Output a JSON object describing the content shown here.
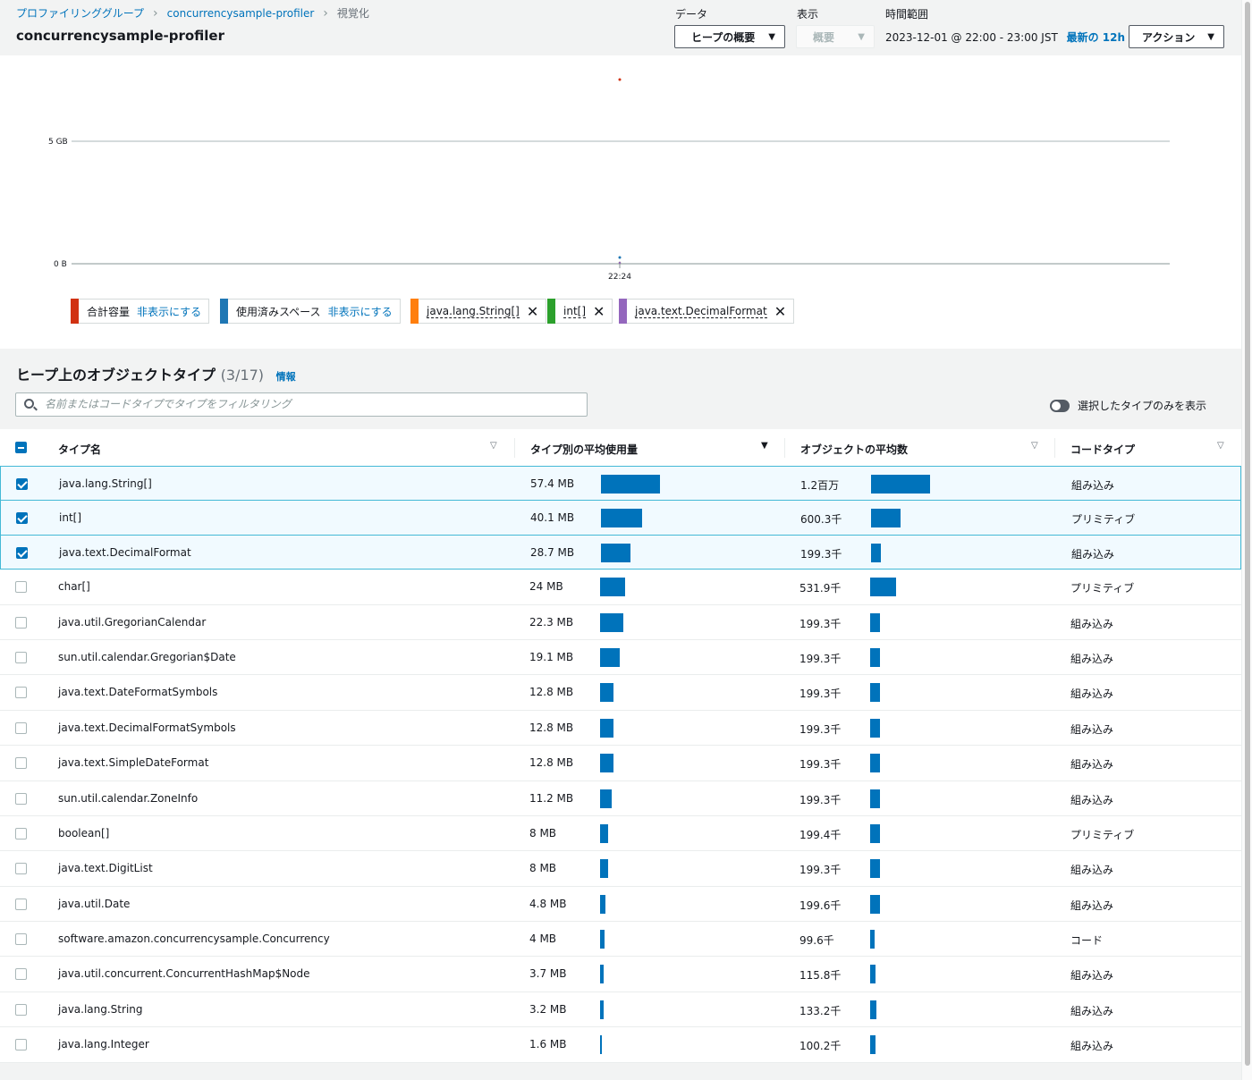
{
  "breadcrumb": {
    "item1": "プロファイリンググループ",
    "item2": "concurrencysample-profiler",
    "current": "視覚化"
  },
  "page_title": "concurrencysample-profiler",
  "controls": {
    "data_label": "データ",
    "data_value": "ヒープの概要",
    "view_label": "表示",
    "view_value": "概要",
    "time_label": "時間範囲",
    "time_value": "2023-12-01 @ 22:00 - 23:00 JST",
    "time_link": "最新の 12h",
    "action_button": "アクション"
  },
  "chart_data": {
    "type": "scatter",
    "y_ticks": [
      "5 GB",
      "0 B"
    ],
    "x_ticks": [
      "22:24"
    ],
    "series": [
      {
        "name": "合計容量",
        "color": "#d13212"
      },
      {
        "name": "使用済みスペース",
        "color": "#1f77b4"
      },
      {
        "name": "java.lang.String[]",
        "color": "#ff7f0e"
      },
      {
        "name": "int[]",
        "color": "#2ca02c"
      },
      {
        "name": "java.text.DecimalFormat",
        "color": "#9467bd"
      }
    ]
  },
  "legend": {
    "hide": "非表示にする",
    "items": [
      "合計容量",
      "使用済みスペース",
      "java.lang.String[]",
      "int[]",
      "java.text.DecimalFormat"
    ]
  },
  "section": {
    "title": "ヒープ上のオブジェクトタイプ",
    "count": "(3/17)",
    "info": "情報",
    "filter_placeholder": "名前またはコードタイプでタイプをフィルタリング",
    "toggle_label": "選択したタイプのみを表示"
  },
  "table": {
    "headers": [
      "タイプ名",
      "タイプ別の平均使用量",
      "オブジェクトの平均数",
      "コードタイプ"
    ],
    "rows": [
      {
        "name": "java.lang.String[]",
        "usage": "57.4 MB",
        "usage_mb": 57.4,
        "count": "1.2百万",
        "count_k": 1200,
        "code": "組み込み",
        "checked": true
      },
      {
        "name": "int[]",
        "usage": "40.1 MB",
        "usage_mb": 40.1,
        "count": "600.3千",
        "count_k": 600.3,
        "code": "プリミティブ",
        "checked": true
      },
      {
        "name": "java.text.DecimalFormat",
        "usage": "28.7 MB",
        "usage_mb": 28.7,
        "count": "199.3千",
        "count_k": 199.3,
        "code": "組み込み",
        "checked": true
      },
      {
        "name": "char[]",
        "usage": "24 MB",
        "usage_mb": 24,
        "count": "531.9千",
        "count_k": 531.9,
        "code": "プリミティブ",
        "checked": false
      },
      {
        "name": "java.util.GregorianCalendar",
        "usage": "22.3 MB",
        "usage_mb": 22.3,
        "count": "199.3千",
        "count_k": 199.3,
        "code": "組み込み",
        "checked": false
      },
      {
        "name": "sun.util.calendar.Gregorian$Date",
        "usage": "19.1 MB",
        "usage_mb": 19.1,
        "count": "199.3千",
        "count_k": 199.3,
        "code": "組み込み",
        "checked": false
      },
      {
        "name": "java.text.DateFormatSymbols",
        "usage": "12.8 MB",
        "usage_mb": 12.8,
        "count": "199.3千",
        "count_k": 199.3,
        "code": "組み込み",
        "checked": false
      },
      {
        "name": "java.text.DecimalFormatSymbols",
        "usage": "12.8 MB",
        "usage_mb": 12.8,
        "count": "199.3千",
        "count_k": 199.3,
        "code": "組み込み",
        "checked": false
      },
      {
        "name": "java.text.SimpleDateFormat",
        "usage": "12.8 MB",
        "usage_mb": 12.8,
        "count": "199.3千",
        "count_k": 199.3,
        "code": "組み込み",
        "checked": false
      },
      {
        "name": "sun.util.calendar.ZoneInfo",
        "usage": "11.2 MB",
        "usage_mb": 11.2,
        "count": "199.3千",
        "count_k": 199.3,
        "code": "組み込み",
        "checked": false
      },
      {
        "name": "boolean[]",
        "usage": "8 MB",
        "usage_mb": 8,
        "count": "199.4千",
        "count_k": 199.4,
        "code": "プリミティブ",
        "checked": false
      },
      {
        "name": "java.text.DigitList",
        "usage": "8 MB",
        "usage_mb": 8,
        "count": "199.3千",
        "count_k": 199.3,
        "code": "組み込み",
        "checked": false
      },
      {
        "name": "java.util.Date",
        "usage": "4.8 MB",
        "usage_mb": 4.8,
        "count": "199.6千",
        "count_k": 199.6,
        "code": "組み込み",
        "checked": false
      },
      {
        "name": "software.amazon.concurrencysample.Concurrency",
        "usage": "4 MB",
        "usage_mb": 4,
        "count": "99.6千",
        "count_k": 99.6,
        "code": "コード",
        "checked": false
      },
      {
        "name": "java.util.concurrent.ConcurrentHashMap$Node",
        "usage": "3.7 MB",
        "usage_mb": 3.7,
        "count": "115.8千",
        "count_k": 115.8,
        "code": "組み込み",
        "checked": false
      },
      {
        "name": "java.lang.String",
        "usage": "3.2 MB",
        "usage_mb": 3.2,
        "count": "133.2千",
        "count_k": 133.2,
        "code": "組み込み",
        "checked": false
      },
      {
        "name": "java.lang.Integer",
        "usage": "1.6 MB",
        "usage_mb": 1.6,
        "count": "100.2千",
        "count_k": 100.2,
        "code": "組み込み",
        "checked": false
      }
    ]
  },
  "colors": {
    "accent": "#0073bb",
    "bar": "#0073bb",
    "selected_border": "#44b9d6"
  }
}
